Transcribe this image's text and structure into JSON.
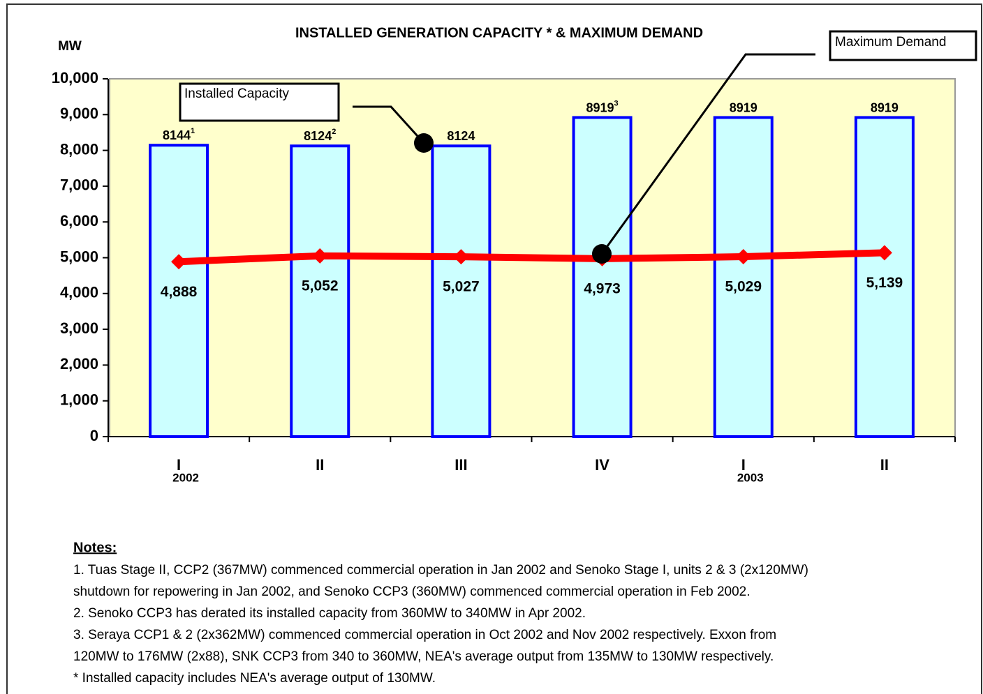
{
  "chart_data": {
    "type": "bar",
    "title": "INSTALLED GENERATION CAPACITY * & MAXIMUM DEMAND",
    "y_label": "MW",
    "categories": [
      "I",
      "II",
      "III",
      "IV",
      "I",
      "II"
    ],
    "category_groups": [
      "2002",
      null,
      null,
      null,
      "2003",
      null
    ],
    "ylim": [
      0,
      10000
    ],
    "yticks": [
      {
        "value": 0,
        "label": "0"
      },
      {
        "value": 1000,
        "label": "1,000"
      },
      {
        "value": 2000,
        "label": "2,000"
      },
      {
        "value": 3000,
        "label": "3,000"
      },
      {
        "value": 4000,
        "label": "4,000"
      },
      {
        "value": 5000,
        "label": "5,000"
      },
      {
        "value": 6000,
        "label": "6,000"
      },
      {
        "value": 7000,
        "label": "7,000"
      },
      {
        "value": 8000,
        "label": "8,000"
      },
      {
        "value": 9000,
        "label": "9,000"
      },
      {
        "value": 10000,
        "label": "10,000"
      }
    ],
    "grid": false,
    "series": [
      {
        "name": "Installed Capacity",
        "type": "bar",
        "color": "#ccffff",
        "edge_color": "#0000ff",
        "values": [
          8144,
          8124,
          8124,
          8919,
          8919,
          8919
        ],
        "value_notes": [
          "1",
          "2",
          null,
          "3",
          null,
          null
        ]
      },
      {
        "name": "Maximum Demand",
        "type": "line",
        "color": "#ff0000",
        "values": [
          4888,
          5052,
          5027,
          4973,
          5029,
          5139
        ],
        "value_labels": [
          "4,888",
          "5,052",
          "5,027",
          "4,973",
          "5,029",
          "5,139"
        ]
      }
    ],
    "notes": {
      "title": "Notes:",
      "lines": [
        "1. Tuas Stage II, CCP2 (367MW) commenced commercial operation in Jan 2002 and Senoko Stage I, units 2 & 3 (2x120MW)",
        "shutdown for repowering in Jan 2002, and Senoko CCP3 (360MW) commenced commercial operation in Feb 2002.",
        "2. Senoko CCP3 has derated its installed capacity from 360MW to 340MW in Apr 2002.",
        "3. Seraya CCP1 & 2 (2x362MW) commenced commercial operation in Oct 2002 and Nov 2002 respectively. Exxon from",
        "120MW to 176MW (2x88), SNK CCP3 from 340 to 360MW, NEA's average output from 135MW to 130MW respectively.",
        "*  Installed capacity includes NEA's average output of 130MW."
      ]
    }
  }
}
